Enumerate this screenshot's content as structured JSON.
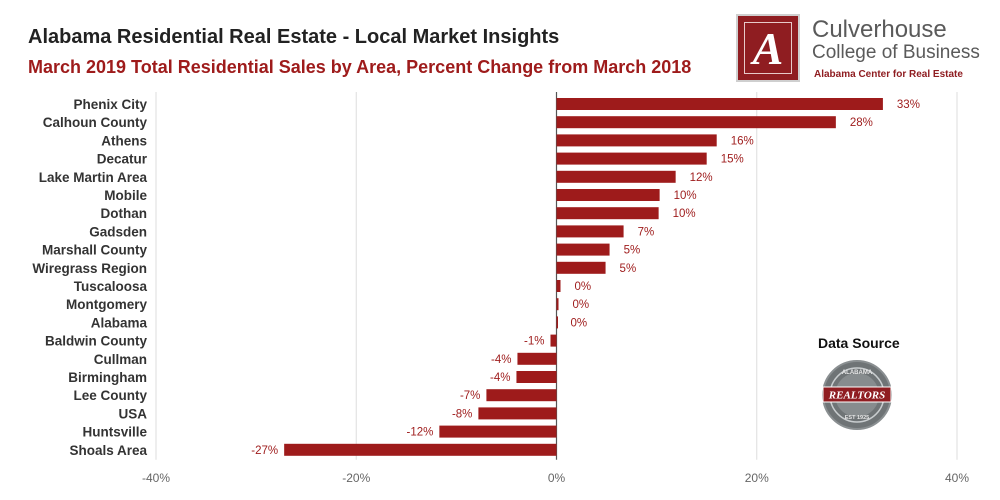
{
  "header": {
    "title": "Alabama Residential Real Estate - Local Market Insights",
    "subtitle": "March 2019 Total Residential Sales by Area, Percent Change from March 2018"
  },
  "logo": {
    "letter": "A",
    "line1": "Culverhouse",
    "line2": "College of Business",
    "line3": "Alabama Center for Real Estate",
    "color": "#8f1d21"
  },
  "source": {
    "label": "Data Source",
    "seal_text": "REALTORS",
    "seal_top": "ALABAMA",
    "seal_bottom": "EST 1925"
  },
  "chart_data": {
    "type": "bar",
    "orientation": "horizontal",
    "categories": [
      "Phenix City",
      "Calhoun County",
      "Athens",
      "Decatur",
      "Lake Martin Area",
      "Mobile",
      "Dothan",
      "Gadsden",
      "Marshall County",
      "Wiregrass Region",
      "Tuscaloosa",
      "Montgomery",
      "Alabama",
      "Baldwin County",
      "Cullman",
      "Birmingham",
      "Lee County",
      "USA",
      "Huntsville",
      "Shoals Area"
    ],
    "values": [
      32.6,
      27.9,
      16.0,
      15.0,
      11.9,
      10.3,
      10.2,
      6.7,
      5.3,
      4.9,
      0.4,
      0.2,
      0.0,
      -0.6,
      -3.9,
      -4.0,
      -7.0,
      -7.8,
      -11.7,
      -27.2
    ],
    "labels": [
      "33%",
      "28%",
      "16%",
      "15%",
      "12%",
      "10%",
      "10%",
      "7%",
      "5%",
      "5%",
      "0%",
      "0%",
      "0%",
      "-1%",
      "-4%",
      "-4%",
      "-7%",
      "-8%",
      "-12%",
      "-27%"
    ],
    "xlim": [
      -40,
      40
    ],
    "xticks": [
      -40,
      -20,
      0,
      20,
      40
    ],
    "xtick_labels": [
      "-40%",
      "-20%",
      "0%",
      "20%",
      "40%"
    ],
    "grid": true,
    "bar_color": "#9e1b1b",
    "label_color": "#9e1b1b"
  }
}
